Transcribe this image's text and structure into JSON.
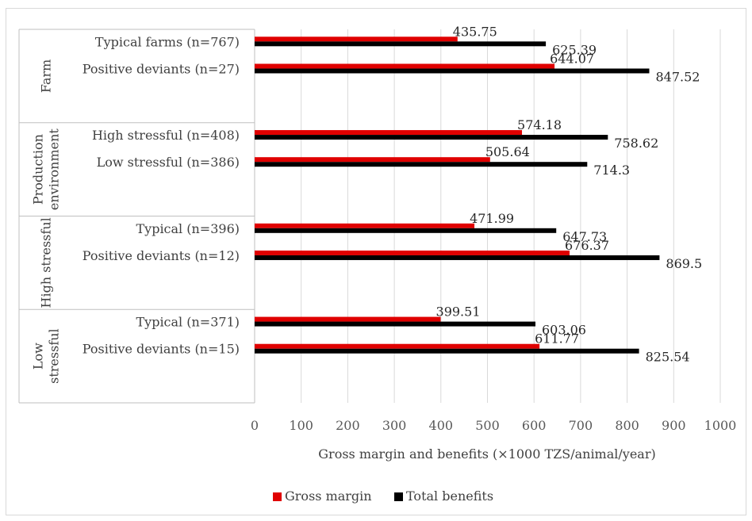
{
  "chart_data": {
    "type": "bar",
    "orientation": "horizontal",
    "xlabel": "Gross margin and benefits (×1000 TZS/animal/year)",
    "xlim": [
      0,
      1000
    ],
    "xticks": [
      "0",
      "100",
      "200",
      "300",
      "400",
      "500",
      "600",
      "700",
      "800",
      "900",
      "1000"
    ],
    "grid": true,
    "legend_position": "bottom",
    "groups": [
      {
        "name": "Farm",
        "categories": [
          {
            "label": "Typical farms (n=767)",
            "gross_margin": 435.75,
            "total_benefits": 625.39,
            "gm_label": "435.75",
            "tb_label": "625.39"
          },
          {
            "label": "Positive deviants (n=27)",
            "gross_margin": 644.07,
            "total_benefits": 847.52,
            "gm_label": "644.07",
            "tb_label": "847.52"
          }
        ]
      },
      {
        "name": "Production environment",
        "categories": [
          {
            "label": "High stressful (n=408)",
            "gross_margin": 574.18,
            "total_benefits": 758.62,
            "gm_label": "574.18",
            "tb_label": "758.62"
          },
          {
            "label": "Low stressful (n=386)",
            "gross_margin": 505.64,
            "total_benefits": 714.3,
            "gm_label": "505.64",
            "tb_label": "714.3"
          }
        ]
      },
      {
        "name": "High stressful",
        "categories": [
          {
            "label": "Typical (n=396)",
            "gross_margin": 471.99,
            "total_benefits": 647.73,
            "gm_label": "471.99",
            "tb_label": "647.73"
          },
          {
            "label": "Positive deviants (n=12)",
            "gross_margin": 676.37,
            "total_benefits": 869.5,
            "gm_label": "676.37",
            "tb_label": "869.5"
          }
        ]
      },
      {
        "name": "Low stressful",
        "categories": [
          {
            "label": "Typical (n=371)",
            "gross_margin": 399.51,
            "total_benefits": 603.06,
            "gm_label": "399.51",
            "tb_label": "603.06"
          },
          {
            "label": "Positive deviants (n=15)",
            "gross_margin": 611.77,
            "total_benefits": 825.54,
            "gm_label": "611.77",
            "tb_label": "825.54"
          }
        ]
      }
    ],
    "series": [
      {
        "name": "Gross margin",
        "key": "gross_margin",
        "color": "#e00000"
      },
      {
        "name": "Total benefits",
        "key": "total_benefits",
        "color": "#000000"
      }
    ]
  }
}
